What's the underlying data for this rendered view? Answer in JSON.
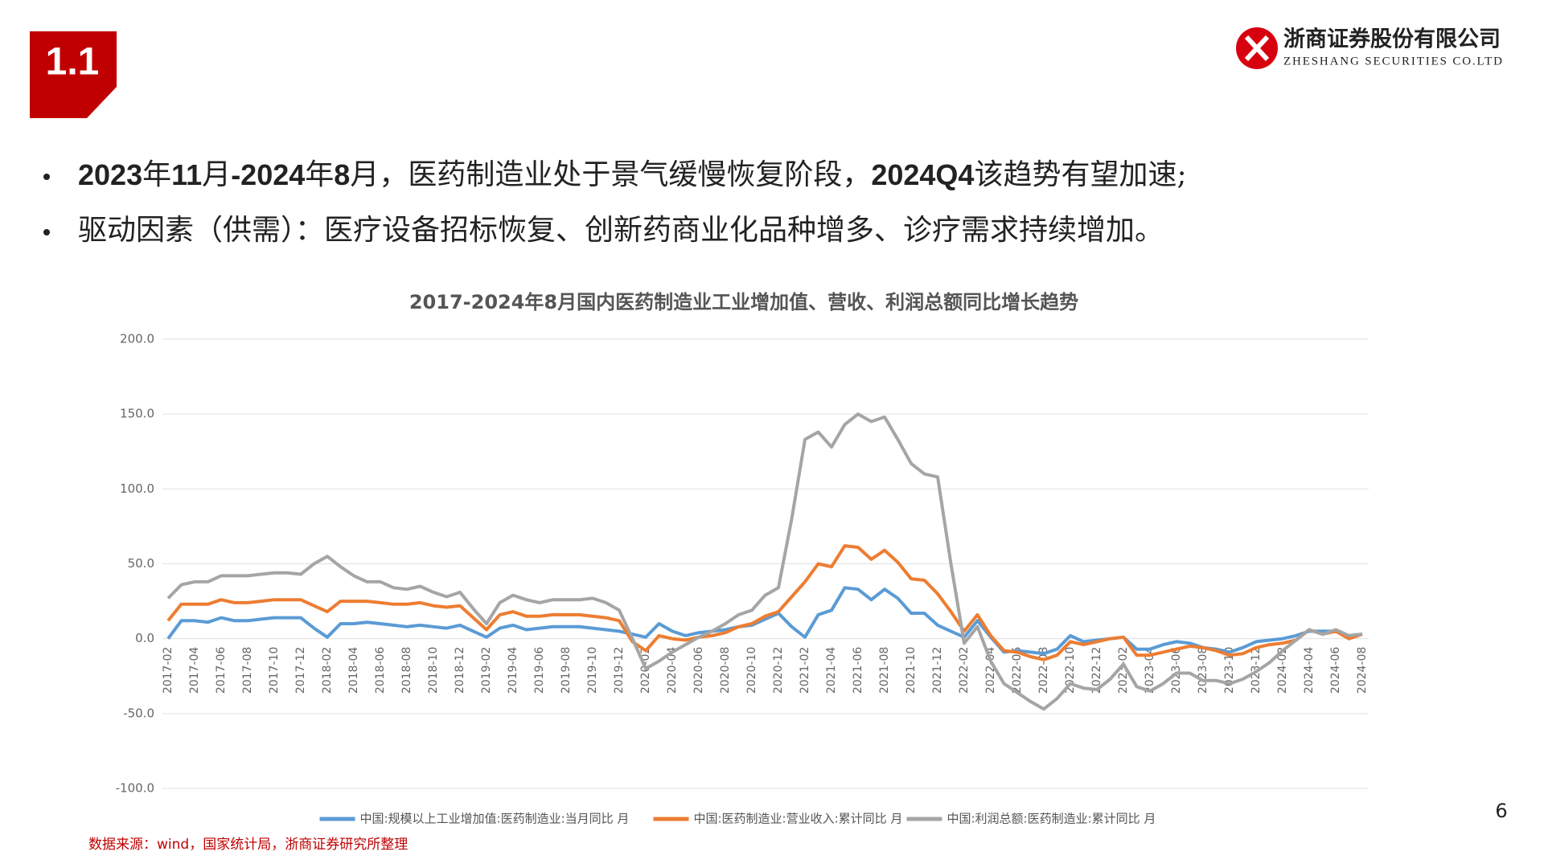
{
  "header": {
    "section": "1.1"
  },
  "logo": {
    "name": "浙商证券股份有限公司",
    "english": "ZHESHANG SECURITIES CO.LTD"
  },
  "bullets": [
    [
      {
        "text": "2023",
        "bold": true
      },
      {
        "text": "年",
        "bold": false
      },
      {
        "text": "11",
        "bold": true
      },
      {
        "text": "月",
        "bold": false
      },
      {
        "text": "-2024",
        "bold": true
      },
      {
        "text": "年",
        "bold": false
      },
      {
        "text": "8",
        "bold": true
      },
      {
        "text": "月，医药制造业处于景气缓慢恢复阶段，",
        "bold": false
      },
      {
        "text": "2024Q4",
        "bold": true
      },
      {
        "text": "该趋势有望加速;",
        "bold": false
      }
    ],
    [
      {
        "text": "驱动因素（供需）：医疗设备招标恢复、创新药商业化品种增多、诊疗需求持续增加。",
        "bold": false
      }
    ]
  ],
  "source": "数据来源：wind，国家统计局，浙商证券研究所整理",
  "page_number": "6",
  "chart_data": {
    "type": "line",
    "title": "2017-2024年8月国内医药制造业工业增加值、营收、利润总额同比增长趋势",
    "categories": [
      "2017-02",
      null,
      "2017-04",
      null,
      "2017-06",
      null,
      "2017-08",
      null,
      "2017-10",
      null,
      "2017-12",
      null,
      "2018-02",
      null,
      "2018-04",
      null,
      "2018-06",
      null,
      "2018-08",
      null,
      "2018-10",
      null,
      "2018-12",
      null,
      "2019-02",
      null,
      "2019-04",
      null,
      "2019-06",
      null,
      "2019-08",
      null,
      "2019-10",
      null,
      "2019-12",
      null,
      "2020-02",
      null,
      "2020-04",
      null,
      "2020-06",
      null,
      "2020-08",
      null,
      "2020-10",
      null,
      "2020-12",
      null,
      "2021-02",
      null,
      "2021-04",
      null,
      "2021-06",
      null,
      "2021-08",
      null,
      "2021-10",
      null,
      "2021-12",
      null,
      "2022-02",
      null,
      "2022-04",
      null,
      "2022-06",
      null,
      "2022-08",
      null,
      "2022-10",
      null,
      "2022-12",
      null,
      "2023-02",
      null,
      "2023-04",
      null,
      "2023-06",
      null,
      "2023-08",
      null,
      "2023-10",
      null,
      "2023-12",
      null,
      "2024-02",
      null,
      "2024-04",
      null,
      "2024-06",
      null,
      "2024-08"
    ],
    "series": [
      {
        "name": "中国:规模以上工业增加值:医药制造业:当月同比 月",
        "color": "#5b9bd5",
        "values": [
          0,
          12,
          12,
          11,
          14,
          12,
          12,
          13,
          14,
          14,
          14,
          7,
          1,
          10,
          10,
          11,
          10,
          9,
          8,
          9,
          8,
          7,
          9,
          5,
          1,
          7,
          9,
          6,
          7,
          8,
          8,
          8,
          7,
          6,
          5,
          3,
          1,
          10,
          5,
          2,
          4,
          5,
          6,
          8,
          9,
          13,
          17,
          8,
          1,
          16,
          19,
          34,
          33,
          26,
          33,
          27,
          17,
          17,
          9,
          5,
          1,
          12,
          1,
          -9,
          -8,
          -9,
          -10,
          -7,
          2,
          -2,
          -1,
          0,
          1,
          -7,
          -7,
          -4,
          -2,
          -3,
          -6,
          -7,
          -9,
          -6,
          -2,
          -1,
          0,
          2,
          5,
          5,
          5,
          2,
          3
        ]
      },
      {
        "name": "中国:医药制造业:营业收入:累计同比 月",
        "color": "#ed7d31",
        "values": [
          12,
          23,
          23,
          23,
          26,
          24,
          24,
          25,
          26,
          26,
          26,
          22,
          18,
          25,
          25,
          25,
          24,
          23,
          23,
          24,
          22,
          21,
          22,
          14,
          6,
          16,
          18,
          15,
          15,
          16,
          16,
          16,
          15,
          14,
          12,
          -2,
          -8,
          2,
          0,
          -1,
          1,
          2,
          4,
          8,
          10,
          15,
          18,
          28,
          38,
          50,
          48,
          62,
          61,
          53,
          59,
          51,
          40,
          39,
          30,
          18,
          5,
          16,
          2,
          -8,
          -9,
          -12,
          -14,
          -11,
          -2,
          -4,
          -2,
          0,
          1,
          -11,
          -11,
          -9,
          -7,
          -5,
          -6,
          -8,
          -11,
          -10,
          -6,
          -4,
          -3,
          -1,
          6,
          3,
          5,
          0,
          3
        ]
      },
      {
        "name": "中国:利润总额:医药制造业:累计同比 月",
        "color": "#a5a5a5",
        "values": [
          27,
          36,
          38,
          38,
          42,
          42,
          42,
          43,
          44,
          44,
          43,
          50,
          55,
          48,
          42,
          38,
          38,
          34,
          33,
          35,
          31,
          28,
          31,
          20,
          10,
          24,
          29,
          26,
          24,
          26,
          26,
          26,
          27,
          24,
          19,
          0,
          -20,
          -15,
          -9,
          -4,
          1,
          5,
          10,
          16,
          19,
          29,
          34,
          80,
          133,
          138,
          128,
          143,
          150,
          145,
          148,
          133,
          117,
          110,
          108,
          50,
          -3,
          8,
          -15,
          -30,
          -36,
          -42,
          -47,
          -40,
          -30,
          -33,
          -34,
          -27,
          -17,
          -32,
          -35,
          -30,
          -23,
          -23,
          -28,
          -28,
          -30,
          -27,
          -22,
          -16,
          -8,
          -1,
          6,
          3,
          6,
          2,
          3
        ]
      }
    ],
    "ylim": [
      -100,
      200
    ],
    "yticks": [
      {
        "value": -100,
        "label": "-100.0"
      },
      {
        "value": -50,
        "label": "-50.0"
      },
      {
        "value": 0,
        "label": "0.0"
      },
      {
        "value": 50,
        "label": "50.0"
      },
      {
        "value": 100,
        "label": "100.0"
      },
      {
        "value": 150,
        "label": "150.0"
      },
      {
        "value": 200,
        "label": "200.0"
      }
    ],
    "grid": true,
    "legend": "bottom"
  }
}
